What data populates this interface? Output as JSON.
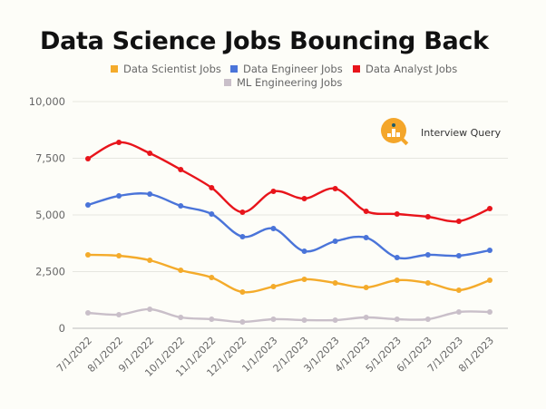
{
  "chart_data": {
    "type": "line",
    "title": "Data Science Jobs Bouncing Back",
    "xlabel": "",
    "ylabel": "",
    "categories": [
      "7/1/2022",
      "8/1/2022",
      "9/1/2022",
      "10/1/2022",
      "11/1/2022",
      "12/1/2022",
      "1/1/2023",
      "2/1/2023",
      "3/1/2023",
      "4/1/2023",
      "5/1/2023",
      "6/1/2023",
      "7/1/2023",
      "8/1/2023"
    ],
    "ylim": [
      0,
      10000
    ],
    "yticks": [
      0,
      2500,
      5000,
      7500,
      10000
    ],
    "ytick_labels": [
      "0",
      "2,500",
      "5,000",
      "7,500",
      "10,000"
    ],
    "grid": true,
    "legend_position": "top",
    "series": [
      {
        "name": "Data Scientist Jobs",
        "color": "#f4ab2b",
        "values": [
          3240,
          3200,
          3000,
          2560,
          2240,
          1600,
          1840,
          2160,
          2000,
          1800,
          2120,
          2000,
          1680,
          2120
        ]
      },
      {
        "name": "Data Engineer Jobs",
        "color": "#4a74d9",
        "values": [
          5440,
          5840,
          5920,
          5400,
          5040,
          4040,
          4400,
          3400,
          3840,
          4000,
          3120,
          3240,
          3200,
          3440
        ]
      },
      {
        "name": "Data Analyst Jobs",
        "color": "#e8141b",
        "values": [
          7480,
          8200,
          7720,
          7000,
          6200,
          5120,
          6040,
          5720,
          6160,
          5160,
          5040,
          4920,
          4720,
          5280
        ]
      },
      {
        "name": "ML Engineering Jobs",
        "color": "#c9bfc9",
        "values": [
          680,
          600,
          840,
          480,
          400,
          280,
          400,
          360,
          360,
          480,
          400,
          400,
          720,
          720
        ]
      }
    ]
  },
  "brand": {
    "name": "Interview Query",
    "icon": "magnifier-chart-logo",
    "color": "#f4a62a"
  }
}
